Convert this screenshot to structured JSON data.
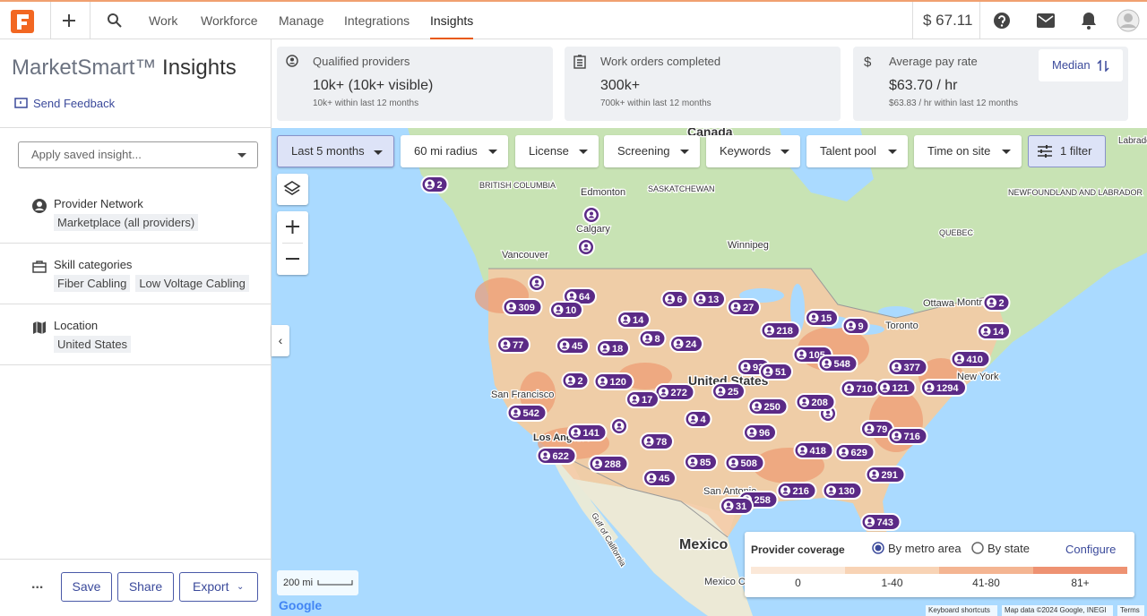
{
  "nav": {
    "items": [
      "Work",
      "Workforce",
      "Manage",
      "Integrations",
      "Insights"
    ],
    "active_index": 4,
    "balance": "$ 67.11"
  },
  "sidebar": {
    "title_brand": "MarketSmart™",
    "title": "Insights",
    "feedback": "Send Feedback",
    "saved_insight_placeholder": "Apply saved insight...",
    "sections": [
      {
        "label": "Provider Network",
        "chips": [
          "Marketplace (all providers)"
        ]
      },
      {
        "label": "Skill categories",
        "chips": [
          "Fiber Cabling",
          "Low Voltage Cabling"
        ]
      },
      {
        "label": "Location",
        "chips": [
          "United States"
        ]
      }
    ],
    "actions": {
      "more": "...",
      "save": "Save",
      "share": "Share",
      "export": "Export"
    }
  },
  "stats": [
    {
      "label": "Qualified providers",
      "value": "10k+ (10k+ visible)",
      "sub": "10k+ within last 12 months"
    },
    {
      "label": "Work orders completed",
      "value": "300k+",
      "sub": "700k+ within last 12 months"
    },
    {
      "label": "Average pay rate",
      "value": "$63.70 / hr",
      "sub": "$63.83 / hr within last 12 months"
    }
  ],
  "stats_toggle": "Median",
  "filters": [
    "Last 5 months",
    "60 mi radius",
    "License",
    "Screening",
    "Keywords",
    "Talent pool",
    "Time on site"
  ],
  "more_filters": "1 filter",
  "map": {
    "place_labels": [
      "Canada",
      "BRITISH COLUMBIA",
      "Edmonton",
      "SASKATCHEWAN",
      "Calgary",
      "Vancouver",
      "Winnipeg",
      "QUEBEC",
      "NEWFOUNDLAND AND LABRADOR",
      "Ottawa",
      "Montreal",
      "Toronto",
      "United States",
      "New York",
      "San Francisco",
      "Los Angeles",
      "San Antonio",
      "Mexico",
      "Mexico City",
      "Gulf of California",
      "Labrado"
    ],
    "markers": [
      2,
      64,
      309,
      10,
      6,
      13,
      27,
      14,
      15,
      9,
      218,
      2,
      14,
      77,
      45,
      18,
      8,
      24,
      105,
      548,
      377,
      410,
      93,
      51,
      2,
      120,
      710,
      121,
      1294,
      272,
      25,
      17,
      250,
      208,
      542,
      4,
      141,
      96,
      79,
      716,
      78,
      418,
      629,
      622,
      288,
      85,
      508,
      291,
      45,
      216,
      130,
      258,
      31,
      743
    ]
  },
  "legend": {
    "title": "Provider coverage",
    "options": [
      "By metro area",
      "By state"
    ],
    "selected": 0,
    "configure": "Configure",
    "bins": [
      "0",
      "1-40",
      "41-80",
      "81+"
    ]
  },
  "scale": "200 mi",
  "attribution": [
    "Google",
    "Keyboard shortcuts",
    "Map data ©2024 Google, INEGI",
    "Terms"
  ]
}
